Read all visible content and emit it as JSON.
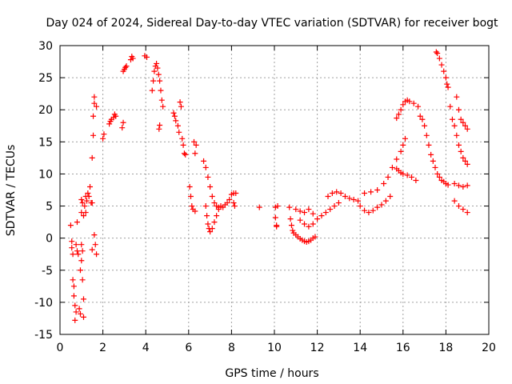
{
  "chart_data": {
    "type": "scatter",
    "title": "Day 024 of 2024, Sidereal Day-to-day VTEC variation (SDTVAR) for receiver bogt",
    "xlabel": "GPS time / hours",
    "ylabel": "SDTVAR / TECUs",
    "xlim": [
      0,
      20
    ],
    "ylim": [
      -15,
      30
    ],
    "xticks": [
      0,
      2,
      4,
      6,
      8,
      10,
      12,
      14,
      16,
      18,
      20
    ],
    "yticks": [
      -15,
      -10,
      -5,
      0,
      5,
      10,
      15,
      20,
      25,
      30
    ],
    "grid": true,
    "marker": "+",
    "colors": {
      "series": "#ff0000",
      "grid": "#a0a0a0",
      "axis": "#000000"
    },
    "series": [
      {
        "name": "SDTVAR",
        "points": [
          [
            0.5,
            2.0
          ],
          [
            0.55,
            -0.5
          ],
          [
            0.55,
            -1.5
          ],
          [
            0.6,
            -2.5
          ],
          [
            0.6,
            -6.5
          ],
          [
            0.65,
            -7.5
          ],
          [
            0.65,
            -9.0
          ],
          [
            0.7,
            -10.5
          ],
          [
            0.7,
            -12.8
          ],
          [
            0.75,
            -11.5
          ],
          [
            0.75,
            -1.0
          ],
          [
            0.8,
            -2.0
          ],
          [
            0.8,
            2.5
          ],
          [
            0.85,
            -2.5
          ],
          [
            0.9,
            -11.0
          ],
          [
            0.95,
            -11.8
          ],
          [
            0.95,
            -5.0
          ],
          [
            1.0,
            -3.5
          ],
          [
            1.0,
            -1.0
          ],
          [
            1.0,
            4.0
          ],
          [
            1.0,
            6.0
          ],
          [
            1.05,
            -6.5
          ],
          [
            1.05,
            -2.0
          ],
          [
            1.05,
            5.5
          ],
          [
            1.1,
            -12.3
          ],
          [
            1.1,
            -9.5
          ],
          [
            1.1,
            3.5
          ],
          [
            1.15,
            5.0
          ],
          [
            1.2,
            4.0
          ],
          [
            1.2,
            6.5
          ],
          [
            1.25,
            5.8
          ],
          [
            1.3,
            7.0
          ],
          [
            1.35,
            6.5
          ],
          [
            1.4,
            8.0
          ],
          [
            1.45,
            5.5
          ],
          [
            1.5,
            -1.8
          ],
          [
            1.5,
            5.5
          ],
          [
            1.5,
            12.5
          ],
          [
            1.55,
            16.0
          ],
          [
            1.55,
            19.0
          ],
          [
            1.6,
            21.0
          ],
          [
            1.6,
            22.0
          ],
          [
            1.6,
            0.5
          ],
          [
            1.65,
            -1.0
          ],
          [
            1.7,
            -2.5
          ],
          [
            1.7,
            20.5
          ],
          [
            2.0,
            15.5
          ],
          [
            2.05,
            16.2
          ],
          [
            2.3,
            17.8
          ],
          [
            2.35,
            18.2
          ],
          [
            2.4,
            18.5
          ],
          [
            2.5,
            18.8
          ],
          [
            2.55,
            19.3
          ],
          [
            2.6,
            19.0
          ],
          [
            2.9,
            17.2
          ],
          [
            2.95,
            18.0
          ],
          [
            2.95,
            26.0
          ],
          [
            3.0,
            26.3
          ],
          [
            3.05,
            26.6
          ],
          [
            3.1,
            26.8
          ],
          [
            3.3,
            27.8
          ],
          [
            3.35,
            28.3
          ],
          [
            3.4,
            28.0
          ],
          [
            3.95,
            28.4
          ],
          [
            4.05,
            28.2
          ],
          [
            4.3,
            23.0
          ],
          [
            4.35,
            24.5
          ],
          [
            4.4,
            26.0
          ],
          [
            4.45,
            26.8
          ],
          [
            4.5,
            27.2
          ],
          [
            4.55,
            26.5
          ],
          [
            4.6,
            25.5
          ],
          [
            4.62,
            17.0
          ],
          [
            4.65,
            17.6
          ],
          [
            4.65,
            24.5
          ],
          [
            4.7,
            23.0
          ],
          [
            4.75,
            21.5
          ],
          [
            4.8,
            20.5
          ],
          [
            5.3,
            19.5
          ],
          [
            5.35,
            19.0
          ],
          [
            5.4,
            18.3
          ],
          [
            5.5,
            17.5
          ],
          [
            5.55,
            16.5
          ],
          [
            5.6,
            21.2
          ],
          [
            5.65,
            20.5
          ],
          [
            5.7,
            15.5
          ],
          [
            5.75,
            14.5
          ],
          [
            5.8,
            13.2
          ],
          [
            5.85,
            13.0
          ],
          [
            6.05,
            8.0
          ],
          [
            6.1,
            6.5
          ],
          [
            6.15,
            5.0
          ],
          [
            6.2,
            4.5
          ],
          [
            6.3,
            4.2
          ],
          [
            6.25,
            15.0
          ],
          [
            6.35,
            14.5
          ],
          [
            6.3,
            13.2
          ],
          [
            6.7,
            12.0
          ],
          [
            6.8,
            11.0
          ],
          [
            6.9,
            9.5
          ],
          [
            7.0,
            8.0
          ],
          [
            7.1,
            6.5
          ],
          [
            7.2,
            5.5
          ],
          [
            7.3,
            5.0
          ],
          [
            7.4,
            4.8
          ],
          [
            6.8,
            5.0
          ],
          [
            6.85,
            3.5
          ],
          [
            6.9,
            2.2
          ],
          [
            6.95,
            1.5
          ],
          [
            7.0,
            1.0
          ],
          [
            7.1,
            1.5
          ],
          [
            7.2,
            2.5
          ],
          [
            7.3,
            3.5
          ],
          [
            7.4,
            4.5
          ],
          [
            7.5,
            5.0
          ],
          [
            7.6,
            4.8
          ],
          [
            7.7,
            5.2
          ],
          [
            7.8,
            5.5
          ],
          [
            7.9,
            6.0
          ],
          [
            8.0,
            6.8
          ],
          [
            8.1,
            7.0
          ],
          [
            8.2,
            7.0
          ],
          [
            8.1,
            5.5
          ],
          [
            8.15,
            5.0
          ],
          [
            9.3,
            4.8
          ],
          [
            10.05,
            4.8
          ],
          [
            10.05,
            3.2
          ],
          [
            10.1,
            2.0
          ],
          [
            10.1,
            1.8
          ],
          [
            10.15,
            5.0
          ],
          [
            10.7,
            4.8
          ],
          [
            10.75,
            3.0
          ],
          [
            10.8,
            2.0
          ],
          [
            10.85,
            1.2
          ],
          [
            10.9,
            0.8
          ],
          [
            11.0,
            0.5
          ],
          [
            11.1,
            0.2
          ],
          [
            11.2,
            -0.1
          ],
          [
            11.3,
            -0.3
          ],
          [
            11.4,
            -0.5
          ],
          [
            11.5,
            -0.6
          ],
          [
            11.6,
            -0.5
          ],
          [
            11.7,
            -0.3
          ],
          [
            11.8,
            0.0
          ],
          [
            11.9,
            0.2
          ],
          [
            11.0,
            4.5
          ],
          [
            11.2,
            4.2
          ],
          [
            11.4,
            4.0
          ],
          [
            11.6,
            4.5
          ],
          [
            11.8,
            3.8
          ],
          [
            11.2,
            2.8
          ],
          [
            11.4,
            2.2
          ],
          [
            11.6,
            1.8
          ],
          [
            11.8,
            2.2
          ],
          [
            12.0,
            3.0
          ],
          [
            12.2,
            3.5
          ],
          [
            12.4,
            4.0
          ],
          [
            12.6,
            4.5
          ],
          [
            12.8,
            5.0
          ],
          [
            13.0,
            5.5
          ],
          [
            12.5,
            6.5
          ],
          [
            12.7,
            7.0
          ],
          [
            12.9,
            7.2
          ],
          [
            13.1,
            7.0
          ],
          [
            13.3,
            6.5
          ],
          [
            13.5,
            6.2
          ],
          [
            13.7,
            6.0
          ],
          [
            13.9,
            5.8
          ],
          [
            14.0,
            5.0
          ],
          [
            14.2,
            4.3
          ],
          [
            14.4,
            4.0
          ],
          [
            14.6,
            4.3
          ],
          [
            14.8,
            4.8
          ],
          [
            15.0,
            5.2
          ],
          [
            15.2,
            5.8
          ],
          [
            15.4,
            6.5
          ],
          [
            14.2,
            7.0
          ],
          [
            14.5,
            7.2
          ],
          [
            14.8,
            7.5
          ],
          [
            15.1,
            8.5
          ],
          [
            15.3,
            9.5
          ],
          [
            15.5,
            11.0
          ],
          [
            15.7,
            12.3
          ],
          [
            15.9,
            13.5
          ],
          [
            16.0,
            14.5
          ],
          [
            16.1,
            15.5
          ],
          [
            15.7,
            10.8
          ],
          [
            15.8,
            10.5
          ],
          [
            15.9,
            10.2
          ],
          [
            16.0,
            10.0
          ],
          [
            16.2,
            9.8
          ],
          [
            16.4,
            9.5
          ],
          [
            16.6,
            9.0
          ],
          [
            15.7,
            18.7
          ],
          [
            15.8,
            19.3
          ],
          [
            15.9,
            20.0
          ],
          [
            16.0,
            20.8
          ],
          [
            16.1,
            21.3
          ],
          [
            16.2,
            21.5
          ],
          [
            16.3,
            21.3
          ],
          [
            16.5,
            21.0
          ],
          [
            16.7,
            20.5
          ],
          [
            16.8,
            19.0
          ],
          [
            16.9,
            18.5
          ],
          [
            17.0,
            17.5
          ],
          [
            17.1,
            16.0
          ],
          [
            17.2,
            14.5
          ],
          [
            17.3,
            13.0
          ],
          [
            17.4,
            12.0
          ],
          [
            17.5,
            11.0
          ],
          [
            17.6,
            10.0
          ],
          [
            17.7,
            9.5
          ],
          [
            17.8,
            9.0
          ],
          [
            17.9,
            8.8
          ],
          [
            18.0,
            8.5
          ],
          [
            18.1,
            8.3
          ],
          [
            17.55,
            29.0
          ],
          [
            17.6,
            28.8
          ],
          [
            17.7,
            28.0
          ],
          [
            17.8,
            27.0
          ],
          [
            17.9,
            26.0
          ],
          [
            18.0,
            25.0
          ],
          [
            18.05,
            24.0
          ],
          [
            18.1,
            23.5
          ],
          [
            18.2,
            20.5
          ],
          [
            18.3,
            18.5
          ],
          [
            18.4,
            17.5
          ],
          [
            18.5,
            16.0
          ],
          [
            18.6,
            14.5
          ],
          [
            18.7,
            13.5
          ],
          [
            18.8,
            12.5
          ],
          [
            18.9,
            12.0
          ],
          [
            19.0,
            11.5
          ],
          [
            18.5,
            22.0
          ],
          [
            18.6,
            20.0
          ],
          [
            18.7,
            18.5
          ],
          [
            18.8,
            18.0
          ],
          [
            18.9,
            17.5
          ],
          [
            19.0,
            17.0
          ],
          [
            18.4,
            8.5
          ],
          [
            18.6,
            8.2
          ],
          [
            18.8,
            8.0
          ],
          [
            19.0,
            8.2
          ],
          [
            18.4,
            5.8
          ],
          [
            18.6,
            5.0
          ],
          [
            18.8,
            4.5
          ],
          [
            19.0,
            4.0
          ]
        ]
      }
    ]
  }
}
